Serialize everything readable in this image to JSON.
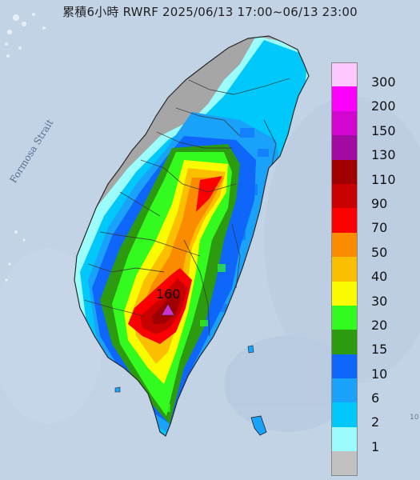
{
  "title": "累積6小時 RWRF 2025/06/13 17:00~06/13 23:00",
  "sea_label": "Formosa Strait",
  "edge_label": "10",
  "legend": [
    {
      "label": "300",
      "color": "#fdc8fd"
    },
    {
      "label": "200",
      "color": "#fb00fb"
    },
    {
      "label": "150",
      "color": "#d106d1"
    },
    {
      "label": "130",
      "color": "#a10ba1"
    },
    {
      "label": "110",
      "color": "#a00000"
    },
    {
      "label": "90",
      "color": "#c80000"
    },
    {
      "label": "70",
      "color": "#fb0000"
    },
    {
      "label": "50",
      "color": "#fb8c00"
    },
    {
      "label": "40",
      "color": "#fbbf00"
    },
    {
      "label": "30",
      "color": "#fbfb00"
    },
    {
      "label": "20",
      "color": "#33fb1f"
    },
    {
      "label": "15",
      "color": "#2d9b10"
    },
    {
      "label": "10",
      "color": "#0f66fb"
    },
    {
      "label": "6",
      "color": "#1aa2fb"
    },
    {
      "label": "2",
      "color": "#00c8fb"
    },
    {
      "label": "1",
      "color": "#9cfbfb"
    },
    {
      "label": "",
      "color": "#c1c1c1"
    }
  ],
  "peak": {
    "label": "160",
    "marker_color": "#cc33cc"
  },
  "colors": {
    "sea": "#c3d3e6",
    "land_no_rain": "#a6a6a6",
    "border": "#333333"
  }
}
